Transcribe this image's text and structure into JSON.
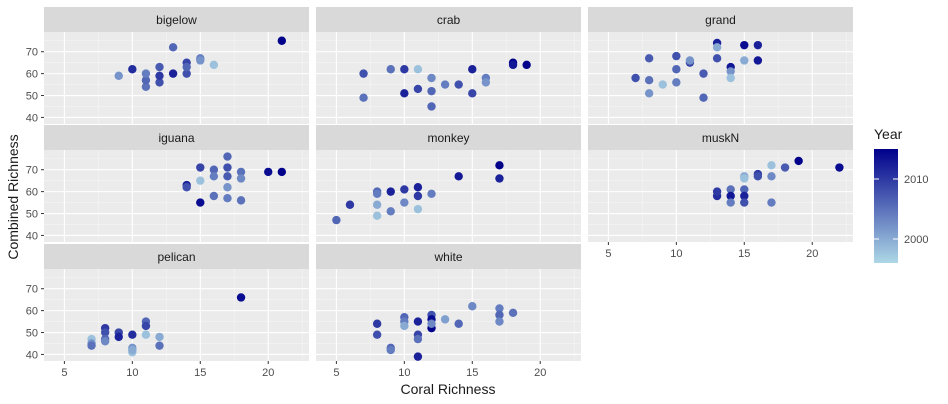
{
  "chart_data": {
    "type": "scatter",
    "facet_layout": "3x3 grid, shared axes",
    "xlabel": "Coral Richness",
    "ylabel": "Combined Richness",
    "xlim": [
      3.5,
      23
    ],
    "ylim": [
      37,
      79
    ],
    "xticks": [
      5,
      10,
      15,
      20
    ],
    "yticks": [
      40,
      50,
      60,
      70
    ],
    "grid": true,
    "legend": {
      "title": "Year",
      "position": "right",
      "type": "continuous colorbar",
      "range": [
        1996,
        2015
      ],
      "ticks": [
        2000,
        2010
      ],
      "low_color": "#add8e6",
      "high_color": "#00008b"
    },
    "facets": [
      {
        "name": "bigelow",
        "points": [
          [
            9,
            59,
            1997
          ],
          [
            9,
            59,
            2002
          ],
          [
            10,
            62,
            2011
          ],
          [
            11,
            54,
            2005
          ],
          [
            11,
            57,
            2006
          ],
          [
            11,
            60,
            2004
          ],
          [
            12,
            56,
            2008
          ],
          [
            12,
            59,
            2010
          ],
          [
            12,
            63,
            2007
          ],
          [
            13,
            72,
            2006
          ],
          [
            13,
            60,
            2012
          ],
          [
            14,
            60,
            2008
          ],
          [
            14,
            65,
            2009
          ],
          [
            14,
            63,
            2006
          ],
          [
            15,
            67,
            2004
          ],
          [
            15,
            66,
            2002
          ],
          [
            16,
            64,
            1998
          ],
          [
            21,
            75,
            2015
          ]
        ]
      },
      {
        "name": "crab",
        "points": [
          [
            7,
            60,
            2008
          ],
          [
            7,
            49,
            2005
          ],
          [
            9,
            62,
            2005
          ],
          [
            10,
            62,
            2010
          ],
          [
            10,
            51,
            2012
          ],
          [
            11,
            62,
            1998
          ],
          [
            11,
            53,
            2009
          ],
          [
            12,
            58,
            2003
          ],
          [
            12,
            52,
            2006
          ],
          [
            12,
            45,
            2006
          ],
          [
            13,
            55,
            2004
          ],
          [
            14,
            55,
            2008
          ],
          [
            15,
            62,
            2012
          ],
          [
            15,
            51,
            2009
          ],
          [
            16,
            58,
            2004
          ],
          [
            16,
            56,
            2002
          ],
          [
            18,
            65,
            2015
          ],
          [
            19,
            64,
            2015
          ],
          [
            18,
            64,
            2013
          ]
        ]
      },
      {
        "name": "grand",
        "points": [
          [
            7,
            58,
            2008
          ],
          [
            8,
            67,
            2007
          ],
          [
            8,
            57,
            2005
          ],
          [
            8,
            51,
            2002
          ],
          [
            9,
            55,
            1998
          ],
          [
            10,
            68,
            2008
          ],
          [
            10,
            62,
            2006
          ],
          [
            10,
            56,
            2004
          ],
          [
            11,
            65,
            2009
          ],
          [
            11,
            66,
            2002
          ],
          [
            12,
            49,
            2006
          ],
          [
            12,
            60,
            2007
          ],
          [
            13,
            74,
            2012
          ],
          [
            13,
            72,
            2000
          ],
          [
            13,
            67,
            2008
          ],
          [
            14,
            63,
            2013
          ],
          [
            14,
            61,
            2002
          ],
          [
            14,
            58,
            1998
          ],
          [
            15,
            73,
            2014
          ],
          [
            15,
            66,
            2000
          ],
          [
            16,
            66,
            2013
          ],
          [
            16,
            73,
            2012
          ]
        ]
      },
      {
        "name": "iguana",
        "points": [
          [
            14,
            63,
            2012
          ],
          [
            14,
            62,
            2008
          ],
          [
            15,
            71,
            2009
          ],
          [
            15,
            55,
            2014
          ],
          [
            15,
            65,
            1998
          ],
          [
            16,
            70,
            2006
          ],
          [
            16,
            67,
            2004
          ],
          [
            16,
            58,
            2005
          ],
          [
            17,
            76,
            2006
          ],
          [
            17,
            71,
            2008
          ],
          [
            17,
            67,
            2007
          ],
          [
            17,
            62,
            2002
          ],
          [
            17,
            57,
            2004
          ],
          [
            18,
            69,
            2005
          ],
          [
            18,
            66,
            2003
          ],
          [
            18,
            56,
            2005
          ],
          [
            20,
            69,
            2014
          ],
          [
            21,
            69,
            2015
          ]
        ]
      },
      {
        "name": "monkey",
        "points": [
          [
            5,
            47,
            2006
          ],
          [
            6,
            54,
            2010
          ],
          [
            8,
            60,
            2006
          ],
          [
            8,
            59,
            2004
          ],
          [
            8,
            54,
            2000
          ],
          [
            8,
            49,
            1998
          ],
          [
            9,
            60,
            2012
          ],
          [
            9,
            51,
            2004
          ],
          [
            10,
            61,
            2010
          ],
          [
            10,
            55,
            2003
          ],
          [
            11,
            62,
            2012
          ],
          [
            11,
            58,
            2010
          ],
          [
            11,
            52,
            1998
          ],
          [
            12,
            59,
            2004
          ],
          [
            14,
            67,
            2013
          ],
          [
            17,
            72,
            2015
          ],
          [
            17,
            66,
            2012
          ]
        ]
      },
      {
        "name": "muskN",
        "points": [
          [
            13,
            58,
            2011
          ],
          [
            13,
            60,
            2010
          ],
          [
            14,
            61,
            2005
          ],
          [
            14,
            58,
            2013
          ],
          [
            14,
            55,
            2004
          ],
          [
            15,
            61,
            2006
          ],
          [
            15,
            58,
            2012
          ],
          [
            15,
            55,
            2008
          ],
          [
            15,
            67,
            2000
          ],
          [
            15,
            66,
            1998
          ],
          [
            16,
            68,
            2010
          ],
          [
            16,
            67,
            2008
          ],
          [
            17,
            72,
            1998
          ],
          [
            17,
            67,
            2003
          ],
          [
            17,
            55,
            2004
          ],
          [
            18,
            71,
            2007
          ],
          [
            19,
            74,
            2015
          ],
          [
            22,
            71,
            2014
          ]
        ]
      },
      {
        "name": "pelican",
        "points": [
          [
            7,
            47,
            1998
          ],
          [
            7,
            45,
            2002
          ],
          [
            7,
            44,
            2005
          ],
          [
            8,
            52,
            2010
          ],
          [
            8,
            50,
            2008
          ],
          [
            8,
            47,
            2006
          ],
          [
            8,
            46,
            2003
          ],
          [
            9,
            50,
            2009
          ],
          [
            9,
            48,
            2012
          ],
          [
            10,
            49,
            2011
          ],
          [
            10,
            43,
            2002
          ],
          [
            10,
            41,
            1998
          ],
          [
            10,
            42,
            2000
          ],
          [
            11,
            55,
            2006
          ],
          [
            11,
            53,
            2009
          ],
          [
            11,
            49,
            1998
          ],
          [
            12,
            48,
            2000
          ],
          [
            12,
            44,
            2005
          ],
          [
            18,
            66,
            2014
          ]
        ]
      },
      {
        "name": "white",
        "points": [
          [
            8,
            54,
            2010
          ],
          [
            8,
            49,
            2008
          ],
          [
            9,
            43,
            2006
          ],
          [
            9,
            42,
            2004
          ],
          [
            10,
            57,
            2006
          ],
          [
            10,
            55,
            2004
          ],
          [
            10,
            53,
            2000
          ],
          [
            11,
            55,
            2012
          ],
          [
            11,
            49,
            2009
          ],
          [
            11,
            47,
            2005
          ],
          [
            11,
            39,
            2012
          ],
          [
            12,
            58,
            2008
          ],
          [
            12,
            56,
            2014
          ],
          [
            12,
            52,
            2015
          ],
          [
            12,
            54,
            2003
          ],
          [
            13,
            56,
            2001
          ],
          [
            14,
            54,
            2006
          ],
          [
            15,
            62,
            2003
          ],
          [
            17,
            61,
            2004
          ],
          [
            17,
            58,
            2006
          ],
          [
            17,
            55,
            2003
          ],
          [
            18,
            59,
            2005
          ]
        ]
      }
    ]
  }
}
